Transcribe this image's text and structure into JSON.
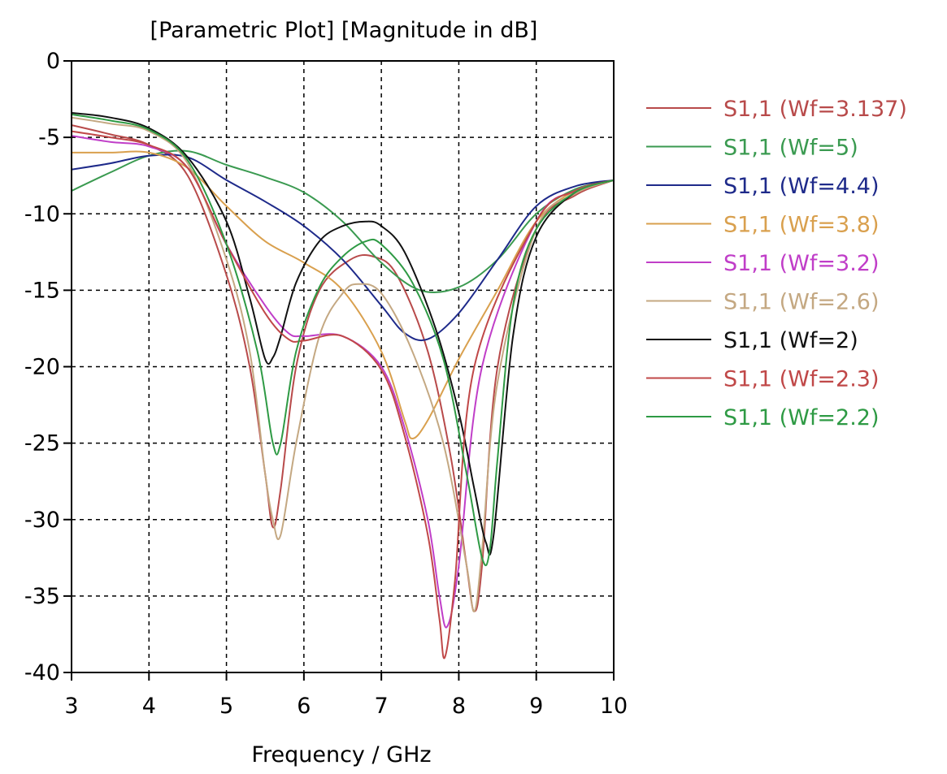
{
  "chart_data": {
    "type": "line",
    "title": "[Parametric Plot] [Magnitude in dB]",
    "xlabel": "Frequency / GHz",
    "ylabel": "",
    "xlim": [
      3,
      10
    ],
    "ylim": [
      -40,
      0
    ],
    "x_ticks": [
      "3",
      "4",
      "5",
      "6",
      "7",
      "8",
      "9",
      "10"
    ],
    "y_ticks": [
      "0",
      "-5",
      "-10",
      "-15",
      "-20",
      "-25",
      "-30",
      "-35",
      "-40"
    ],
    "grid": true,
    "grid_style": "dashed",
    "legend_position": "right",
    "series": [
      {
        "name": "S1,1 (Wf=3.137)",
        "color": "#b84a4a",
        "x": [
          3,
          3.5,
          4,
          4.5,
          5,
          5.3,
          5.5,
          5.6,
          5.7,
          5.9,
          6.2,
          6.6,
          6.9,
          7.2,
          7.6,
          7.9,
          8.1,
          8.2,
          8.3,
          8.5,
          9,
          9.5,
          10
        ],
        "y": [
          -4.2,
          -4.8,
          -5.5,
          -7.5,
          -14,
          -20,
          -27,
          -30.5,
          -28,
          -20,
          -15,
          -13,
          -12.8,
          -14,
          -19,
          -26,
          -33,
          -36,
          -33,
          -20,
          -11,
          -8.8,
          -7.8
        ]
      },
      {
        "name": "S1,1 (Wf=5)",
        "color": "#3a9a50",
        "x": [
          3,
          3.5,
          4,
          4.5,
          5,
          5.5,
          6,
          6.5,
          7,
          7.5,
          8,
          8.5,
          9,
          9.5,
          10
        ],
        "y": [
          -8.5,
          -7.3,
          -6.2,
          -5.9,
          -6.8,
          -7.6,
          -8.6,
          -10.5,
          -13.2,
          -15,
          -14.8,
          -13,
          -10,
          -8.4,
          -7.8
        ]
      },
      {
        "name": "S1,1 (Wf=4.4)",
        "color": "#1e2a8a",
        "x": [
          3,
          3.5,
          4,
          4.5,
          5,
          5.5,
          6,
          6.5,
          7,
          7.3,
          7.6,
          8,
          8.5,
          9,
          9.5,
          10
        ],
        "y": [
          -7.1,
          -6.7,
          -6.2,
          -6.3,
          -7.8,
          -9.2,
          -10.8,
          -13,
          -16,
          -17.8,
          -18.2,
          -16.5,
          -13,
          -9.5,
          -8.2,
          -7.8
        ]
      },
      {
        "name": "S1,1 (Wf=3.8)",
        "color": "#d9a04e",
        "x": [
          3,
          3.5,
          4,
          4.5,
          5,
          5.5,
          6,
          6.5,
          7,
          7.3,
          7.4,
          7.6,
          8,
          8.5,
          9,
          9.5,
          10
        ],
        "y": [
          -6,
          -6,
          -6,
          -7,
          -9.5,
          -11.8,
          -13.2,
          -15,
          -19,
          -23.5,
          -24.7,
          -23.5,
          -19.5,
          -15,
          -10.5,
          -8.5,
          -7.8
        ]
      },
      {
        "name": "S1,1 (Wf=3.2)",
        "color": "#c03ec8",
        "x": [
          3,
          3.5,
          4,
          4.5,
          5,
          5.5,
          5.8,
          6,
          6.5,
          7,
          7.3,
          7.6,
          7.75,
          7.85,
          8,
          8.3,
          9,
          9.5,
          10
        ],
        "y": [
          -4.9,
          -5.3,
          -5.6,
          -7,
          -12,
          -16,
          -17.8,
          -18,
          -18,
          -20,
          -24,
          -30,
          -35,
          -37,
          -33,
          -20,
          -10.5,
          -8.5,
          -7.8
        ]
      },
      {
        "name": "S1,1 (Wf=2.6)",
        "color": "#c4a882",
        "x": [
          3,
          3.5,
          4,
          4.5,
          5,
          5.3,
          5.5,
          5.6,
          5.7,
          5.9,
          6.2,
          6.5,
          6.7,
          7,
          7.4,
          7.8,
          8.1,
          8.2,
          8.3,
          8.5,
          9,
          9.5,
          10
        ],
        "y": [
          -3.7,
          -4.1,
          -4.6,
          -6.7,
          -13,
          -19,
          -27,
          -30,
          -31,
          -25,
          -18,
          -15.2,
          -14.6,
          -15.2,
          -19,
          -25,
          -33,
          -36,
          -32,
          -21,
          -11,
          -8.7,
          -7.8
        ]
      },
      {
        "name": "S1,1 (Wf=2)",
        "color": "#111111",
        "x": [
          3,
          3.5,
          4,
          4.5,
          5,
          5.3,
          5.5,
          5.6,
          5.7,
          5.9,
          6.2,
          6.5,
          6.8,
          7,
          7.3,
          7.7,
          8,
          8.2,
          8.35,
          8.45,
          8.7,
          9,
          9.5,
          10
        ],
        "y": [
          -3.4,
          -3.7,
          -4.4,
          -6.3,
          -10.5,
          -15.5,
          -19.5,
          -19.4,
          -18,
          -14.5,
          -11.8,
          -10.8,
          -10.5,
          -10.8,
          -12.5,
          -17.5,
          -23,
          -28,
          -31.5,
          -31,
          -18,
          -11.5,
          -8.6,
          -7.8
        ]
      },
      {
        "name": "S1,1 (Wf=2.3)",
        "color": "#c04848",
        "x": [
          3,
          3.5,
          4,
          4.5,
          5,
          5.5,
          5.8,
          6,
          6.5,
          7,
          7.3,
          7.6,
          7.75,
          7.82,
          7.95,
          8.2,
          9,
          9.5,
          10
        ],
        "y": [
          -4.6,
          -5,
          -5.5,
          -7,
          -12,
          -16.5,
          -18.2,
          -18.3,
          -18,
          -20.2,
          -24.5,
          -31,
          -36.5,
          -39,
          -34,
          -20,
          -10.5,
          -8.5,
          -7.8
        ]
      },
      {
        "name": "S1,1 (Wf=2.2)",
        "color": "#2e9a44",
        "x": [
          3,
          3.5,
          4,
          4.5,
          5,
          5.4,
          5.6,
          5.7,
          5.9,
          6.2,
          6.5,
          6.8,
          7,
          7.4,
          7.8,
          8.1,
          8.3,
          8.4,
          8.5,
          8.7,
          9,
          9.5,
          10
        ],
        "y": [
          -3.5,
          -3.9,
          -4.5,
          -6.5,
          -12,
          -19,
          -25,
          -25,
          -19,
          -14.8,
          -12.8,
          -11.8,
          -12,
          -14.5,
          -19.5,
          -27,
          -32.5,
          -32,
          -26,
          -16,
          -11,
          -8.6,
          -7.8
        ]
      }
    ]
  }
}
